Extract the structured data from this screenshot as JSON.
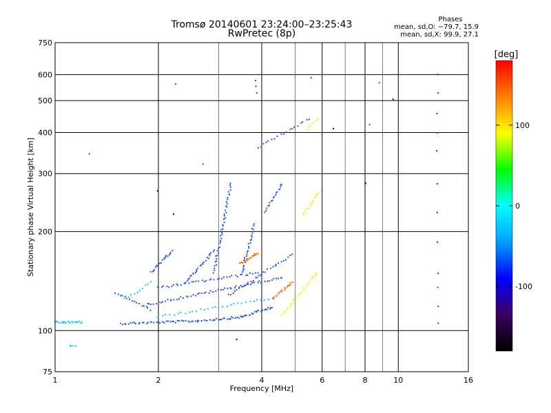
{
  "chart_data": {
    "type": "scatter",
    "title": "Tromsø 20140601 23:24:00–23:25:43",
    "subtitle": "RwPretec (8p)",
    "xlabel": "Frequency [MHz]",
    "ylabel": "Stationary phase Virtual Height [km]",
    "x_scale": "log",
    "y_scale": "log",
    "xlim": [
      1,
      16
    ],
    "ylim": [
      75,
      750
    ],
    "x_ticks": [
      1,
      2,
      4,
      6,
      8,
      10,
      16
    ],
    "y_ticks": [
      75,
      100,
      200,
      300,
      400,
      500,
      600,
      750
    ],
    "x_minor_grid": [
      3,
      5,
      7,
      9
    ],
    "grid": true,
    "phase_info": {
      "title": "Phases",
      "line_o": "mean, sd,O: −79.7, 15.9",
      "line_x": "mean, sd,X:  99.9, 27.1"
    },
    "colorbar": {
      "label": "[deg]",
      "range": [
        -180,
        180
      ],
      "ticks": [
        100,
        0,
        -100
      ],
      "colors": [
        "#000000",
        "#3b0060",
        "#0000ff",
        "#00a0ff",
        "#00ffff",
        "#00ff00",
        "#ffff00",
        "#ff8000",
        "#ff0000"
      ]
    },
    "series": [
      {
        "color": "#2050ff",
        "segments": [
          {
            "f_start": 1.55,
            "f_end": 2.6,
            "h_start": 105,
            "h_end": 107,
            "n": 40
          },
          {
            "f_start": 2.6,
            "f_end": 3.5,
            "h_start": 107,
            "h_end": 110,
            "n": 28
          },
          {
            "f_start": 3.5,
            "f_end": 4.3,
            "h_start": 110,
            "h_end": 118,
            "n": 24
          },
          {
            "f_start": 1.5,
            "f_end": 1.9,
            "h_start": 130,
            "h_end": 116,
            "n": 16
          },
          {
            "f_start": 1.85,
            "f_end": 4.6,
            "h_start": 120,
            "h_end": 145,
            "n": 60
          },
          {
            "f_start": 2.0,
            "f_end": 3.9,
            "h_start": 135,
            "h_end": 150,
            "n": 40
          },
          {
            "f_start": 3.2,
            "f_end": 4.9,
            "h_start": 128,
            "h_end": 170,
            "n": 30
          },
          {
            "f_start": 1.9,
            "f_end": 2.2,
            "h_start": 150,
            "h_end": 175,
            "n": 20
          },
          {
            "f_start": 2.4,
            "f_end": 2.9,
            "h_start": 140,
            "h_end": 175,
            "n": 25
          },
          {
            "f_start": 2.9,
            "f_end": 3.25,
            "h_start": 150,
            "h_end": 280,
            "n": 45
          },
          {
            "f_start": 3.5,
            "f_end": 3.8,
            "h_start": 150,
            "h_end": 210,
            "n": 25
          },
          {
            "f_start": 4.1,
            "f_end": 4.6,
            "h_start": 230,
            "h_end": 280,
            "n": 18
          },
          {
            "f_start": 4.3,
            "f_end": 5.5,
            "h_start": 380,
            "h_end": 440,
            "n": 14
          },
          {
            "f_start": 3.9,
            "f_end": 4.2,
            "h_start": 360,
            "h_end": 375,
            "n": 5
          }
        ]
      },
      {
        "color": "#00c8ff",
        "segments": [
          {
            "f_start": 1.0,
            "f_end": 1.2,
            "h_start": 106,
            "h_end": 106,
            "n": 22
          },
          {
            "f_start": 1.1,
            "f_end": 1.15,
            "h_start": 90,
            "h_end": 90,
            "n": 4
          },
          {
            "f_start": 2.0,
            "f_end": 4.2,
            "h_start": 110,
            "h_end": 125,
            "n": 30
          },
          {
            "f_start": 1.6,
            "f_end": 1.9,
            "h_start": 125,
            "h_end": 140,
            "n": 10
          }
        ]
      },
      {
        "color": "#ff6a00",
        "segments": [
          {
            "f_start": 3.45,
            "f_end": 3.9,
            "h_start": 160,
            "h_end": 172,
            "n": 22
          },
          {
            "f_start": 4.3,
            "f_end": 4.9,
            "h_start": 125,
            "h_end": 140,
            "n": 20
          }
        ]
      },
      {
        "color": "#d8ff00",
        "segments": [
          {
            "f_start": 4.6,
            "f_end": 5.8,
            "h_start": 112,
            "h_end": 150,
            "n": 26
          },
          {
            "f_start": 5.3,
            "f_end": 5.9,
            "h_start": 225,
            "h_end": 265,
            "n": 14
          },
          {
            "f_start": 5.4,
            "f_end": 5.8,
            "h_start": 410,
            "h_end": 440,
            "n": 6
          }
        ]
      },
      {
        "color": "#c00000",
        "segments": [
          {
            "f_start": 13.0,
            "f_end": 13.0,
            "h_start": 350,
            "h_end": 600,
            "n": 5
          },
          {
            "f_start": 13.0,
            "f_end": 13.0,
            "h_start": 150,
            "h_end": 280,
            "n": 4
          }
        ]
      },
      {
        "color": "#2040ff",
        "segments": [
          {
            "f_start": 1.25,
            "f_end": 1.25,
            "h_start": 345,
            "h_end": 345,
            "n": 1
          },
          {
            "f_start": 2.25,
            "f_end": 2.25,
            "h_start": 560,
            "h_end": 560,
            "n": 1
          },
          {
            "f_start": 2.7,
            "f_end": 2.7,
            "h_start": 320,
            "h_end": 320,
            "n": 1
          },
          {
            "f_start": 3.85,
            "f_end": 3.85,
            "h_start": 530,
            "h_end": 575,
            "n": 3
          },
          {
            "f_start": 5.6,
            "f_end": 5.6,
            "h_start": 590,
            "h_end": 590,
            "n": 1
          },
          {
            "f_start": 8.2,
            "f_end": 8.2,
            "h_start": 420,
            "h_end": 420,
            "n": 1
          },
          {
            "f_start": 8.8,
            "f_end": 8.8,
            "h_start": 570,
            "h_end": 570,
            "n": 1
          },
          {
            "f_start": 13.0,
            "f_end": 13.0,
            "h_start": 105,
            "h_end": 135,
            "n": 3
          }
        ]
      },
      {
        "color": "#000080",
        "segments": [
          {
            "f_start": 2.0,
            "f_end": 2.0,
            "h_start": 265,
            "h_end": 265,
            "n": 1
          },
          {
            "f_start": 2.2,
            "f_end": 2.2,
            "h_start": 225,
            "h_end": 225,
            "n": 1
          },
          {
            "f_start": 3.4,
            "f_end": 3.4,
            "h_start": 94,
            "h_end": 94,
            "n": 1
          },
          {
            "f_start": 6.5,
            "f_end": 6.5,
            "h_start": 410,
            "h_end": 410,
            "n": 1
          },
          {
            "f_start": 9.6,
            "f_end": 9.6,
            "h_start": 505,
            "h_end": 505,
            "n": 1
          },
          {
            "f_start": 8.0,
            "f_end": 8.0,
            "h_start": 280,
            "h_end": 280,
            "n": 1
          }
        ]
      }
    ]
  }
}
